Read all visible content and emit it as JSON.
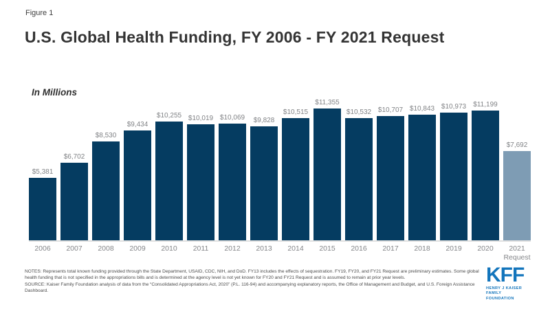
{
  "figure_label": "Figure 1",
  "title": "U.S. Global Health Funding, FY 2006 - FY 2021 Request",
  "units_label": "In Millions",
  "chart_data": {
    "type": "bar",
    "title": "U.S. Global Health Funding, FY 2006 - FY 2021 Request",
    "xlabel": "",
    "ylabel": "In Millions",
    "ylim": [
      0,
      11500
    ],
    "grid": false,
    "legend": "none",
    "categories": [
      "2006",
      "2007",
      "2008",
      "2009",
      "2010",
      "2011",
      "2012",
      "2013",
      "2014",
      "2015",
      "2016",
      "2017",
      "2018",
      "2019",
      "2020",
      "2021 Request"
    ],
    "values": [
      5381,
      6702,
      8530,
      9434,
      10255,
      10019,
      10069,
      9828,
      10515,
      11355,
      10532,
      10707,
      10843,
      10973,
      11199,
      7692
    ],
    "value_labels": [
      "$5,381",
      "$6,702",
      "$8,530",
      "$9,434",
      "$10,255",
      "$10,019",
      "$10,069",
      "$9,828",
      "$10,515",
      "$11,355",
      "$10,532",
      "$10,707",
      "$10,843",
      "$10,973",
      "$11,199",
      "$7,692"
    ],
    "bar_color": "#053c61",
    "highlight_bar_color": "#7e9cb4",
    "highlight_index": 15
  },
  "notes": "NOTES: Represents total known funding provided through the State Department, USAID, CDC, NIH, and DoD. FY13 includes the effects of sequestration. FY19, FY20, and FY21 Request are preliminary estimates. Some global health funding that is not specified in the appropriations bills and is determined at the agency level is not yet known for FY20 and FY21 Request and is assumed to remain at prior year levels.",
  "source": "SOURCE: Kaiser Family Foundation analysis of data from the “Consolidated Appropriations Act, 2020” (P.L. 116-94) and accompanying explanatory reports, the Office of Management and Budget, and U.S. Foreign Assistance Dashboard.",
  "logo": {
    "acronym": "KFF",
    "tagline": "HENRY J KAISER\nFAMILY FOUNDATION",
    "color": "#1375bc"
  }
}
